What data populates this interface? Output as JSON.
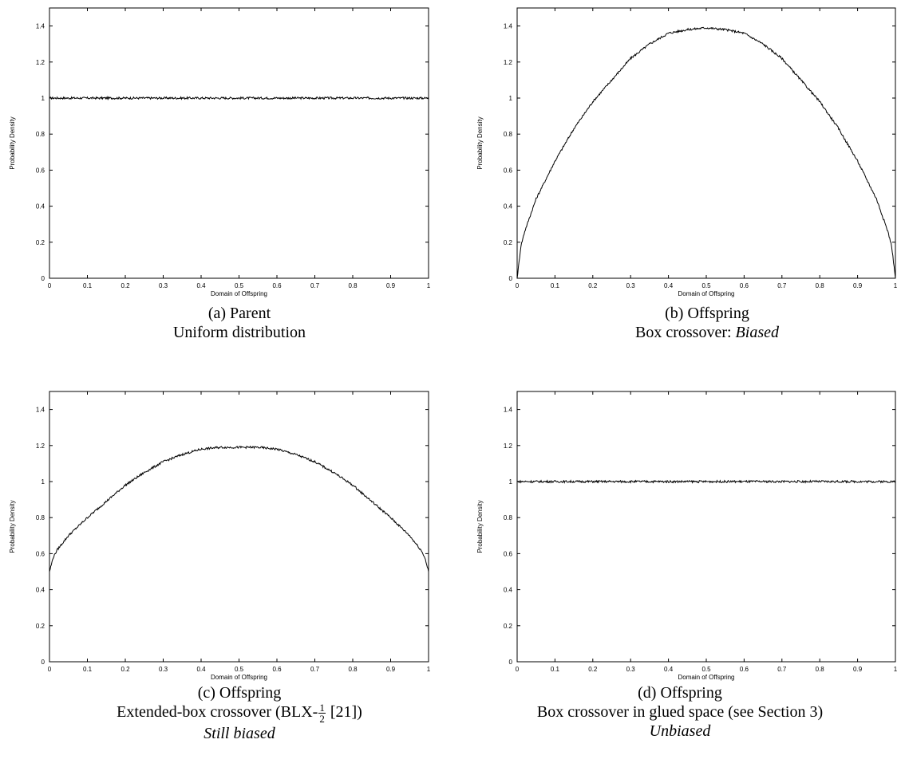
{
  "panels": [
    {
      "id": "a",
      "caption_label": "(a) Parent",
      "caption_line2": "Uniform distribution",
      "caption_line3": ""
    },
    {
      "id": "b",
      "caption_label": "(b) Offspring",
      "caption_line2_prefix": "Box crossover: ",
      "caption_line2_emph": "Biased",
      "caption_line3": ""
    },
    {
      "id": "c",
      "caption_label": "(c) Offspring",
      "caption_line2_prefix": "Extended-box crossover (BLX-",
      "caption_frac_num": "1",
      "caption_frac_den": "2",
      "caption_line2_suffix": " [21])",
      "caption_line3": "Still biased"
    },
    {
      "id": "d",
      "caption_label": "(d) Offspring",
      "caption_line2": "Box crossover in glued space (see Section 3)",
      "caption_line3": "Unbiased"
    }
  ],
  "chart_data": [
    {
      "type": "line",
      "xlabel": "Domain of Offspring",
      "ylabel": "Probability Density",
      "xlim": [
        0,
        1
      ],
      "ylim": [
        0,
        1.5
      ],
      "xticks": [
        "0",
        "0.1",
        "0.2",
        "0.3",
        "0.4",
        "0.5",
        "0.6",
        "0.7",
        "0.8",
        "0.9",
        "1"
      ],
      "yticks": [
        "0",
        "0.2",
        "0.4",
        "0.6",
        "0.8",
        "1",
        "1.2",
        "1.4"
      ],
      "x": [
        0,
        0.1,
        0.2,
        0.3,
        0.4,
        0.5,
        0.6,
        0.7,
        0.8,
        0.9,
        1
      ],
      "values": [
        1,
        1,
        1,
        1,
        1,
        1,
        1,
        1,
        1,
        1,
        1
      ],
      "color": "#000000"
    },
    {
      "type": "line",
      "xlabel": "Domain of Offspring",
      "ylabel": "Probability Density",
      "xlim": [
        0,
        1
      ],
      "ylim": [
        0,
        1.5
      ],
      "xticks": [
        "0",
        "0.1",
        "0.2",
        "0.3",
        "0.4",
        "0.5",
        "0.6",
        "0.7",
        "0.8",
        "0.9",
        "1"
      ],
      "yticks": [
        "0",
        "0.2",
        "0.4",
        "0.6",
        "0.8",
        "1",
        "1.2",
        "1.4"
      ],
      "x": [
        0,
        0.01,
        0.02,
        0.05,
        0.1,
        0.15,
        0.2,
        0.25,
        0.3,
        0.35,
        0.4,
        0.45,
        0.5,
        0.55,
        0.6,
        0.65,
        0.7,
        0.75,
        0.8,
        0.85,
        0.9,
        0.95,
        0.98,
        0.99,
        1
      ],
      "values": [
        0,
        0.18,
        0.26,
        0.44,
        0.65,
        0.83,
        0.98,
        1.1,
        1.22,
        1.3,
        1.36,
        1.38,
        1.39,
        1.38,
        1.36,
        1.3,
        1.22,
        1.1,
        0.98,
        0.83,
        0.65,
        0.44,
        0.26,
        0.18,
        0
      ],
      "color": "#000000"
    },
    {
      "type": "line",
      "xlabel": "Domain of Offspring",
      "ylabel": "Probability Density",
      "xlim": [
        0,
        1
      ],
      "ylim": [
        0,
        1.5
      ],
      "xticks": [
        "0",
        "0.1",
        "0.2",
        "0.3",
        "0.4",
        "0.5",
        "0.6",
        "0.7",
        "0.8",
        "0.9",
        "1"
      ],
      "yticks": [
        "0",
        "0.2",
        "0.4",
        "0.6",
        "0.8",
        "1",
        "1.2",
        "1.4"
      ],
      "x": [
        0,
        0.01,
        0.02,
        0.05,
        0.1,
        0.15,
        0.2,
        0.25,
        0.3,
        0.35,
        0.4,
        0.45,
        0.5,
        0.55,
        0.6,
        0.65,
        0.7,
        0.75,
        0.8,
        0.85,
        0.9,
        0.95,
        0.98,
        0.99,
        1
      ],
      "values": [
        0.5,
        0.58,
        0.62,
        0.7,
        0.8,
        0.89,
        0.98,
        1.05,
        1.11,
        1.15,
        1.18,
        1.19,
        1.19,
        1.19,
        1.18,
        1.15,
        1.11,
        1.05,
        0.98,
        0.89,
        0.8,
        0.7,
        0.62,
        0.58,
        0.5
      ],
      "color": "#000000"
    },
    {
      "type": "line",
      "xlabel": "Domain of Offspring",
      "ylabel": "Probability Density",
      "xlim": [
        0,
        1
      ],
      "ylim": [
        0,
        1.5
      ],
      "xticks": [
        "0",
        "0.1",
        "0.2",
        "0.3",
        "0.4",
        "0.5",
        "0.6",
        "0.7",
        "0.8",
        "0.9",
        "1"
      ],
      "yticks": [
        "0",
        "0.2",
        "0.4",
        "0.6",
        "0.8",
        "1",
        "1.2",
        "1.4"
      ],
      "x": [
        0,
        0.1,
        0.2,
        0.3,
        0.4,
        0.5,
        0.6,
        0.7,
        0.8,
        0.9,
        1
      ],
      "values": [
        1,
        1,
        1,
        1,
        1,
        1,
        1,
        1,
        1,
        1,
        1
      ],
      "color": "#000000"
    }
  ]
}
